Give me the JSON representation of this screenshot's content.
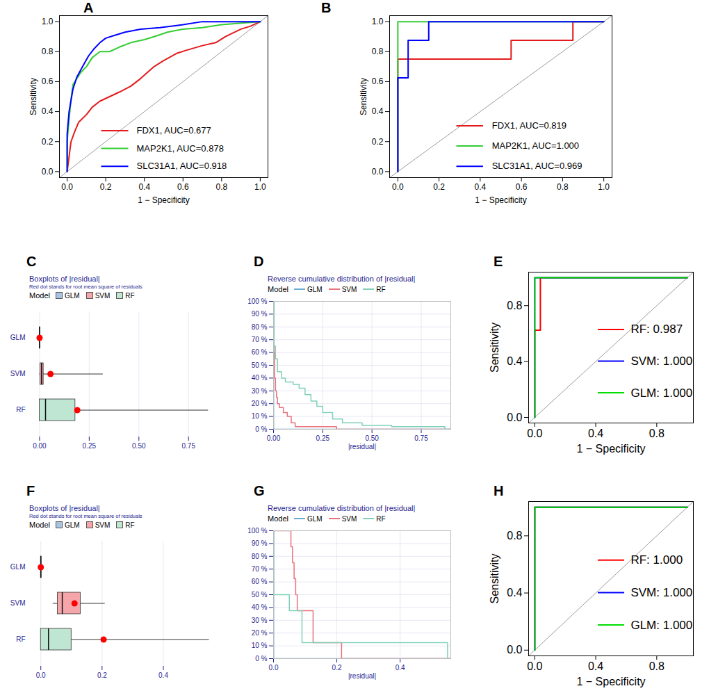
{
  "chart_data": [
    {
      "panel": "A",
      "type": "roc",
      "xlabel": "1 − Specificity",
      "ylabel": "Sensitivity",
      "xlim": [
        -0.04,
        1.04
      ],
      "ylim": [
        -0.04,
        1.04
      ],
      "xticks": [
        {
          "value": 0,
          "label": "0.0"
        },
        0.2,
        0.4,
        0.6,
        0.8,
        {
          "value": 1,
          "label": "1.0"
        }
      ],
      "yticks": [
        {
          "value": 0,
          "label": "0.0"
        },
        0.2,
        0.4,
        0.6,
        0.8,
        {
          "value": 1,
          "label": "1.0"
        }
      ],
      "legend": "bottom-right",
      "series": [
        {
          "name": "FDX1, AUC=0.677",
          "color": "#e41a1c",
          "x": [
            0,
            0.01,
            0.02,
            0.04,
            0.06,
            0.1,
            0.13,
            0.17,
            0.22,
            0.27,
            0.33,
            0.38,
            0.45,
            0.5,
            0.57,
            0.62,
            0.7,
            0.77,
            0.82,
            0.9,
            0.95,
            1
          ],
          "values": [
            0,
            0.1,
            0.2,
            0.27,
            0.33,
            0.38,
            0.43,
            0.47,
            0.5,
            0.53,
            0.57,
            0.62,
            0.7,
            0.74,
            0.79,
            0.81,
            0.84,
            0.86,
            0.9,
            0.95,
            0.97,
            1
          ]
        },
        {
          "name": "MAP2K1, AUC=0.878",
          "color": "#33cc33",
          "x": [
            0,
            0,
            0.01,
            0.02,
            0.03,
            0.05,
            0.07,
            0.1,
            0.13,
            0.17,
            0.22,
            0.27,
            0.33,
            0.4,
            0.45,
            0.52,
            0.6,
            0.7,
            0.8,
            0.9,
            1
          ],
          "values": [
            0,
            0.2,
            0.35,
            0.48,
            0.58,
            0.62,
            0.66,
            0.7,
            0.76,
            0.8,
            0.8,
            0.83,
            0.86,
            0.88,
            0.9,
            0.93,
            0.95,
            0.96,
            0.98,
            0.99,
            1
          ]
        },
        {
          "name": "SLC31A1, AUC=0.918",
          "color": "#0000ff",
          "x": [
            0,
            0,
            0.01,
            0.03,
            0.05,
            0.08,
            0.11,
            0.14,
            0.17,
            0.2,
            0.25,
            0.3,
            0.38,
            0.48,
            0.6,
            0.7,
            1
          ],
          "values": [
            0,
            0.25,
            0.4,
            0.55,
            0.63,
            0.7,
            0.77,
            0.82,
            0.86,
            0.89,
            0.91,
            0.93,
            0.95,
            0.96,
            0.98,
            1,
            1
          ]
        }
      ]
    },
    {
      "panel": "B",
      "type": "roc",
      "xlabel": "1 − Specificity",
      "ylabel": "Sensitivity",
      "xlim": [
        -0.04,
        1.04
      ],
      "ylim": [
        -0.04,
        1.04
      ],
      "xticks": [
        {
          "value": 0,
          "label": "0.0"
        },
        0.2,
        0.4,
        0.6,
        0.8,
        {
          "value": 1,
          "label": "1.0"
        }
      ],
      "yticks": [
        {
          "value": 0,
          "label": "0.0"
        },
        0.2,
        0.4,
        0.6,
        0.8,
        {
          "value": 1,
          "label": "1.0"
        }
      ],
      "legend": "bottom-right",
      "series": [
        {
          "name": "FDX1, AUC=0.819",
          "color": "#e41a1c",
          "x": [
            0,
            0,
            0.55,
            0.55,
            0.85,
            0.85,
            1
          ],
          "values": [
            0,
            0.75,
            0.75,
            0.875,
            0.875,
            1,
            1
          ]
        },
        {
          "name": "MAP2K1, AUC=1.000",
          "color": "#33cc33",
          "x": [
            0,
            0,
            1
          ],
          "values": [
            0,
            1,
            1
          ]
        },
        {
          "name": "SLC31A1, AUC=0.969",
          "color": "#0000ff",
          "x": [
            0,
            0,
            0.05,
            0.05,
            0.15,
            0.15,
            1
          ],
          "values": [
            0,
            0.625,
            0.625,
            0.875,
            0.875,
            1,
            1
          ]
        }
      ]
    },
    {
      "panel": "C",
      "type": "box",
      "title": "Boxplots of |residual|",
      "subtitle": "Red dot stands for root mean square of residuals",
      "legend_title": "Model",
      "legend": "top",
      "orientation": "horizontal",
      "grid": true,
      "categories": [
        "GLM",
        "SVM",
        "RF"
      ],
      "colors": [
        "#a9c4e0",
        "#f4a6ab",
        "#bfe5d3"
      ],
      "min": [
        0,
        0,
        0
      ],
      "q1": [
        0,
        0.004,
        0
      ],
      "median": [
        0,
        0.01,
        0.03
      ],
      "q3": [
        0.002,
        0.02,
        0.18
      ],
      "max": [
        0.004,
        0.32,
        0.85
      ],
      "rmse": [
        0,
        0.055,
        0.19
      ],
      "xlim": [
        -0.04,
        0.87
      ],
      "xticks": [
        {
          "value": 0,
          "label": "0.00"
        },
        0.25,
        {
          "value": 0.5,
          "label": "0.50"
        },
        0.75
      ]
    },
    {
      "panel": "D",
      "type": "line",
      "title": "Reverse cumulative distribution of |residual|",
      "xlabel": "|residual|",
      "legend_title": "Model",
      "legend": "top",
      "grid": true,
      "xlim": [
        0,
        0.9
      ],
      "ylim": [
        0,
        100
      ],
      "xticks": [
        {
          "value": 0,
          "label": "0.00"
        },
        0.25,
        {
          "value": 0.5,
          "label": "0.50"
        },
        0.75
      ],
      "yticks": [
        {
          "value": 0,
          "label": "0 %"
        },
        {
          "value": 10,
          "label": "10 %"
        },
        {
          "value": 20,
          "label": "20 %"
        },
        {
          "value": 30,
          "label": "30 %"
        },
        {
          "value": 40,
          "label": "40 %"
        },
        {
          "value": 50,
          "label": "50 %"
        },
        {
          "value": 60,
          "label": "60 %"
        },
        {
          "value": 70,
          "label": "70 %"
        },
        {
          "value": 80,
          "label": "80 %"
        },
        {
          "value": 90,
          "label": "90 %"
        },
        {
          "value": 100,
          "label": "100 %"
        }
      ],
      "series": [
        {
          "name": "GLM",
          "color": "#6aaed6",
          "line_style": "step",
          "x": [
            0,
            0.0005,
            0.9
          ],
          "values": [
            100,
            0,
            0
          ]
        },
        {
          "name": "SVM",
          "color": "#e8727d",
          "line_style": "step",
          "x": [
            0,
            0.002,
            0.005,
            0.01,
            0.015,
            0.02,
            0.03,
            0.05,
            0.07,
            0.09,
            0.11,
            0.32,
            0.9
          ],
          "values": [
            100,
            60,
            40,
            30,
            25,
            20,
            17,
            13,
            10,
            5,
            2,
            0,
            0
          ]
        },
        {
          "name": "RF",
          "color": "#7fd1b9",
          "line_style": "step",
          "x": [
            0,
            0.003,
            0.01,
            0.02,
            0.04,
            0.06,
            0.1,
            0.13,
            0.16,
            0.19,
            0.22,
            0.25,
            0.3,
            0.35,
            0.45,
            0.6,
            0.87,
            0.9
          ],
          "values": [
            100,
            65,
            55,
            45,
            40,
            37,
            35,
            32,
            27,
            22,
            18,
            13,
            8,
            5,
            3,
            2,
            0,
            0
          ]
        }
      ]
    },
    {
      "panel": "E",
      "type": "roc",
      "xlabel": "1 − Specificity",
      "ylabel": "Sensitivity",
      "xlim": [
        -0.04,
        1.04
      ],
      "ylim": [
        -0.04,
        1.04
      ],
      "xticks": [
        {
          "value": 0,
          "label": "0.0"
        },
        0.4,
        0.8
      ],
      "yticks": [
        {
          "value": 0,
          "label": "0.0"
        },
        0.4,
        0.8
      ],
      "legend": "bottom-right",
      "series": [
        {
          "name": "RF: 0.987",
          "color": "#ff0000",
          "x": [
            0,
            0,
            0.037,
            0.037,
            1
          ],
          "values": [
            0,
            0.625,
            0.625,
            1,
            1
          ]
        },
        {
          "name": "SVM: 1.000",
          "color": "#0000ff",
          "x": [
            0,
            0,
            1
          ],
          "values": [
            0,
            1,
            1
          ]
        },
        {
          "name": "GLM: 1.000",
          "color": "#00dd00",
          "x": [
            0,
            0,
            1
          ],
          "values": [
            0,
            1,
            1
          ]
        }
      ]
    },
    {
      "panel": "F",
      "type": "box",
      "title": "Boxplots of |residual|",
      "subtitle": "Red dot stands for root mean square of residuals",
      "legend_title": "Model",
      "legend": "top",
      "orientation": "horizontal",
      "grid": true,
      "categories": [
        "GLM",
        "SVM",
        "RF"
      ],
      "colors": [
        "#a9c4e0",
        "#f4a6ab",
        "#bfe5d3"
      ],
      "min": [
        0,
        0.04,
        0
      ],
      "q1": [
        0,
        0.055,
        0
      ],
      "median": [
        0,
        0.07,
        0.025
      ],
      "q3": [
        0.002,
        0.13,
        0.1
      ],
      "max": [
        0.004,
        0.21,
        0.55
      ],
      "rmse": [
        0,
        0.11,
        0.205
      ],
      "xlim": [
        -0.03,
        0.56
      ],
      "xticks": [
        {
          "value": 0,
          "label": "0.0"
        },
        0.2,
        0.4
      ]
    },
    {
      "panel": "G",
      "type": "line",
      "title": "Reverse cumulative distribution of |residual|",
      "xlabel": "|residual|",
      "legend_title": "Model",
      "legend": "top",
      "grid": true,
      "xlim": [
        0,
        0.56
      ],
      "ylim": [
        0,
        100
      ],
      "xticks": [
        {
          "value": 0,
          "label": "0.0"
        },
        0.2,
        0.4
      ],
      "yticks": [
        {
          "value": 0,
          "label": "0 %"
        },
        {
          "value": 10,
          "label": "10 %"
        },
        {
          "value": 20,
          "label": "20 %"
        },
        {
          "value": 30,
          "label": "30 %"
        },
        {
          "value": 40,
          "label": "40 %"
        },
        {
          "value": 50,
          "label": "50 %"
        },
        {
          "value": 60,
          "label": "60 %"
        },
        {
          "value": 70,
          "label": "70 %"
        },
        {
          "value": 80,
          "label": "80 %"
        },
        {
          "value": 90,
          "label": "90 %"
        },
        {
          "value": 100,
          "label": "100 %"
        }
      ],
      "series": [
        {
          "name": "GLM",
          "color": "#6aaed6",
          "line_style": "step",
          "x": [
            0,
            0.0005,
            0.56
          ],
          "values": [
            100,
            0,
            0
          ]
        },
        {
          "name": "SVM",
          "color": "#e8727d",
          "line_style": "step",
          "x": [
            0,
            0.055,
            0.06,
            0.065,
            0.07,
            0.075,
            0.125,
            0.215,
            0.56
          ],
          "values": [
            100,
            87.5,
            75,
            62.5,
            50,
            37.5,
            12.5,
            0,
            0
          ]
        },
        {
          "name": "RF",
          "color": "#7fd1b9",
          "line_style": "step",
          "x": [
            0,
            0.0005,
            0.05,
            0.09,
            0.55,
            0.56
          ],
          "values": [
            100,
            50,
            37.5,
            12.5,
            0,
            0
          ]
        }
      ]
    },
    {
      "panel": "H",
      "type": "roc",
      "xlabel": "1 − Specificity",
      "ylabel": "Sensitivity",
      "xlim": [
        -0.04,
        1.04
      ],
      "ylim": [
        -0.04,
        1.04
      ],
      "xticks": [
        {
          "value": 0,
          "label": "0.0"
        },
        0.4,
        0.8
      ],
      "yticks": [
        {
          "value": 0,
          "label": "0.0"
        },
        0.4,
        0.8
      ],
      "legend": "bottom-right",
      "series": [
        {
          "name": "RF: 1.000",
          "color": "#ff0000",
          "x": [
            0,
            0,
            1
          ],
          "values": [
            0,
            1,
            1
          ]
        },
        {
          "name": "SVM: 1.000",
          "color": "#0000ff",
          "x": [
            0,
            0,
            1
          ],
          "values": [
            0,
            1,
            1
          ]
        },
        {
          "name": "GLM: 1.000",
          "color": "#00dd00",
          "x": [
            0,
            0,
            1
          ],
          "values": [
            0,
            1,
            1
          ]
        }
      ]
    }
  ]
}
